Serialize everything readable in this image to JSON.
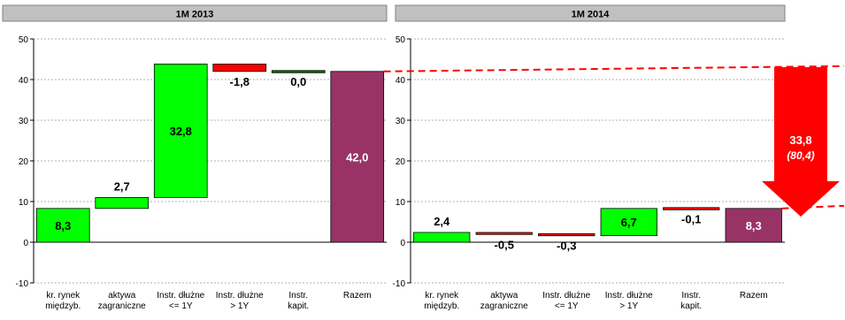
{
  "colors": {
    "header_bg": "#c0c0c0",
    "positive": "#00ff00",
    "negative": "#ff0000",
    "total": "#993366",
    "connector": "#000000",
    "trend_line": "#ff0000",
    "arrow": "#ff0000"
  },
  "arrow_annotation": {
    "value": "33,8",
    "sub": "(80,4)"
  },
  "chart_data": [
    {
      "type": "waterfall",
      "title": "1M 2013",
      "ylim": [
        -10,
        50
      ],
      "yticks": [
        "-10",
        "0",
        "10",
        "20",
        "30",
        "40",
        "50"
      ],
      "categories": [
        [
          "kr. rynek",
          "międzyb."
        ],
        [
          "aktywa",
          "zagraniczne"
        ],
        [
          "Instr. dłużne",
          "<= 1Y"
        ],
        [
          "Instr. dłużne",
          "> 1Y"
        ],
        [
          "Instr.",
          "kapit."
        ],
        [
          "Razem"
        ]
      ],
      "values": [
        8.3,
        2.7,
        32.8,
        -1.8,
        0.0,
        42.0
      ],
      "labels": [
        "8,3",
        "2,7",
        "32,8",
        "-1,8",
        "0,0",
        "42,0"
      ],
      "is_total": [
        false,
        false,
        false,
        false,
        false,
        true
      ]
    },
    {
      "type": "waterfall",
      "title": "1M 2014",
      "ylim": [
        -10,
        50
      ],
      "yticks": [
        "-10",
        "0",
        "10",
        "20",
        "30",
        "40",
        "50"
      ],
      "categories": [
        [
          "kr. rynek",
          "międzyb."
        ],
        [
          "aktywa",
          "zagraniczne"
        ],
        [
          "Instr. dłużne",
          "<= 1Y"
        ],
        [
          "Instr. dłużne",
          "> 1Y"
        ],
        [
          "Instr.",
          "kapit."
        ],
        [
          "Razem"
        ]
      ],
      "values": [
        2.4,
        -0.5,
        -0.3,
        6.7,
        -0.1,
        8.3
      ],
      "labels": [
        "2,4",
        "-0,5",
        "-0,3",
        "6,7",
        "-0,1",
        "8,3"
      ],
      "is_total": [
        false,
        false,
        false,
        false,
        false,
        true
      ]
    }
  ]
}
